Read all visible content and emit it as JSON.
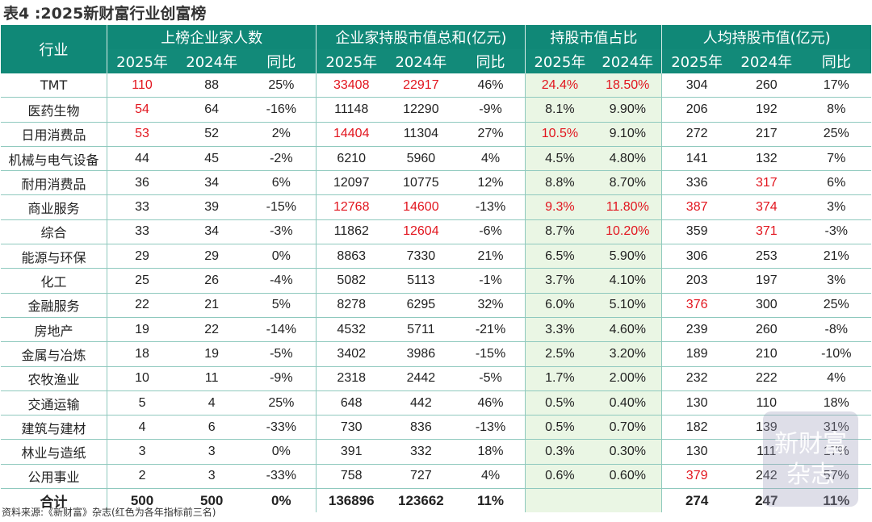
{
  "title": "表4 :2025新财富行业创富榜",
  "header": {
    "industry": "行业",
    "groups": [
      "上榜企业家人数",
      "企业家持股市值总和(亿元)",
      "持股市值占比",
      "人均持股市值(亿元)"
    ],
    "subs": [
      "2025年",
      "2024年",
      "同比",
      "2025年",
      "2024年",
      "同比",
      "2025年",
      "2024年",
      "2025年",
      "2024年",
      "同比"
    ]
  },
  "colors": {
    "header_bg": "#108877",
    "highlight_red": "#e2151e",
    "share_bg": "#eaf6e4"
  },
  "rows": [
    {
      "name": "TMT",
      "cells": [
        "110",
        "88",
        "25%",
        "33408",
        "22917",
        "46%",
        "24.4%",
        "18.50%",
        "304",
        "260",
        "17%"
      ],
      "red": [
        0,
        3,
        4,
        6,
        7
      ]
    },
    {
      "name": "医药生物",
      "cells": [
        "54",
        "64",
        "-16%",
        "11148",
        "12290",
        "-9%",
        "8.1%",
        "9.90%",
        "206",
        "192",
        "8%"
      ],
      "red": [
        0
      ]
    },
    {
      "name": "日用消费品",
      "cells": [
        "53",
        "52",
        "2%",
        "14404",
        "11304",
        "27%",
        "10.5%",
        "9.10%",
        "272",
        "217",
        "25%"
      ],
      "red": [
        0,
        3,
        6
      ]
    },
    {
      "name": "机械与电气设备",
      "cells": [
        "44",
        "45",
        "-2%",
        "6210",
        "5960",
        "4%",
        "4.5%",
        "4.80%",
        "141",
        "132",
        "7%"
      ],
      "red": []
    },
    {
      "name": "耐用消费品",
      "cells": [
        "36",
        "34",
        "6%",
        "12097",
        "10775",
        "12%",
        "8.8%",
        "8.70%",
        "336",
        "317",
        "6%"
      ],
      "red": [
        9
      ]
    },
    {
      "name": "商业服务",
      "cells": [
        "33",
        "39",
        "-15%",
        "12768",
        "14600",
        "-13%",
        "9.3%",
        "11.80%",
        "387",
        "374",
        "3%"
      ],
      "red": [
        3,
        4,
        6,
        7,
        8,
        9
      ]
    },
    {
      "name": "综合",
      "cells": [
        "33",
        "34",
        "-3%",
        "11862",
        "12604",
        "-6%",
        "8.7%",
        "10.20%",
        "359",
        "371",
        "-3%"
      ],
      "red": [
        4,
        7,
        9
      ]
    },
    {
      "name": "能源与环保",
      "cells": [
        "29",
        "29",
        "0%",
        "8863",
        "7330",
        "21%",
        "6.5%",
        "5.90%",
        "306",
        "253",
        "21%"
      ],
      "red": []
    },
    {
      "name": "化工",
      "cells": [
        "25",
        "26",
        "-4%",
        "5082",
        "5113",
        "-1%",
        "3.7%",
        "4.10%",
        "203",
        "197",
        "3%"
      ],
      "red": []
    },
    {
      "name": "金融服务",
      "cells": [
        "22",
        "21",
        "5%",
        "8278",
        "6295",
        "32%",
        "6.0%",
        "5.10%",
        "376",
        "300",
        "25%"
      ],
      "red": [
        8
      ]
    },
    {
      "name": "房地产",
      "cells": [
        "19",
        "22",
        "-14%",
        "4532",
        "5711",
        "-21%",
        "3.3%",
        "4.60%",
        "239",
        "260",
        "-8%"
      ],
      "red": []
    },
    {
      "name": "金属与冶炼",
      "cells": [
        "18",
        "19",
        "-5%",
        "3402",
        "3986",
        "-15%",
        "2.5%",
        "3.20%",
        "189",
        "210",
        "-10%"
      ],
      "red": []
    },
    {
      "name": "农牧渔业",
      "cells": [
        "10",
        "11",
        "-9%",
        "2318",
        "2442",
        "-5%",
        "1.7%",
        "2.00%",
        "232",
        "222",
        "4%"
      ],
      "red": []
    },
    {
      "name": "交通运输",
      "cells": [
        "5",
        "4",
        "25%",
        "648",
        "442",
        "46%",
        "0.5%",
        "0.40%",
        "130",
        "110",
        "18%"
      ],
      "red": []
    },
    {
      "name": "建筑与建材",
      "cells": [
        "4",
        "6",
        "-33%",
        "730",
        "836",
        "-13%",
        "0.5%",
        "0.70%",
        "182",
        "139",
        "31%"
      ],
      "red": []
    },
    {
      "name": "林业与造纸",
      "cells": [
        "3",
        "3",
        "0%",
        "391",
        "332",
        "18%",
        "0.3%",
        "0.30%",
        "130",
        "111",
        "17%"
      ],
      "red": []
    },
    {
      "name": "公用事业",
      "cells": [
        "2",
        "3",
        "-33%",
        "758",
        "727",
        "4%",
        "0.6%",
        "0.60%",
        "379",
        "242",
        "57%"
      ],
      "red": [
        8
      ]
    }
  ],
  "total": {
    "name": "合计",
    "cells": [
      "500",
      "500",
      "0%",
      "136896",
      "123662",
      "11%",
      "",
      "",
      "274",
      "247",
      "11%"
    ]
  },
  "footer": "资料来源:《新财富》杂志(红色为各年指标前三名)",
  "watermark": [
    "新财富",
    "杂志"
  ]
}
